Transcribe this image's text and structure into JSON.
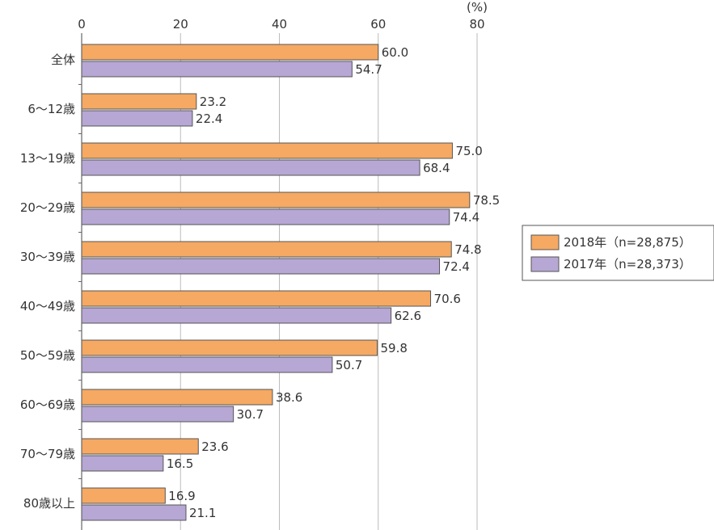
{
  "chart_data": {
    "type": "bar",
    "orientation": "horizontal",
    "unit": "(%)",
    "xlim": [
      0,
      80
    ],
    "xticks": [
      "0",
      "20",
      "40",
      "60",
      "80"
    ],
    "categories": [
      "全体",
      "6～12歳",
      "13～19歳",
      "20～29歳",
      "30～39歳",
      "40～49歳",
      "50～59歳",
      "60～69歳",
      "70～79歳",
      "80歳以上"
    ],
    "series": [
      {
        "name": "2018年（n=28,875）",
        "color": "#f5a963",
        "values": [
          60.0,
          23.2,
          75.0,
          78.5,
          74.8,
          70.6,
          59.8,
          38.6,
          23.6,
          16.9
        ],
        "labels": [
          "60.0",
          "23.2",
          "75.0",
          "78.5",
          "74.8",
          "70.6",
          "59.8",
          "38.6",
          "23.6",
          "16.9"
        ]
      },
      {
        "name": "2017年（n=28,373）",
        "color": "#b6a7d4",
        "values": [
          54.7,
          22.4,
          68.4,
          74.4,
          72.4,
          62.6,
          50.7,
          30.7,
          16.5,
          21.1
        ],
        "labels": [
          "54.7",
          "22.4",
          "68.4",
          "74.4",
          "72.4",
          "62.6",
          "50.7",
          "30.7",
          "16.5",
          "21.1"
        ]
      }
    ],
    "grid": true,
    "legend": "right"
  }
}
